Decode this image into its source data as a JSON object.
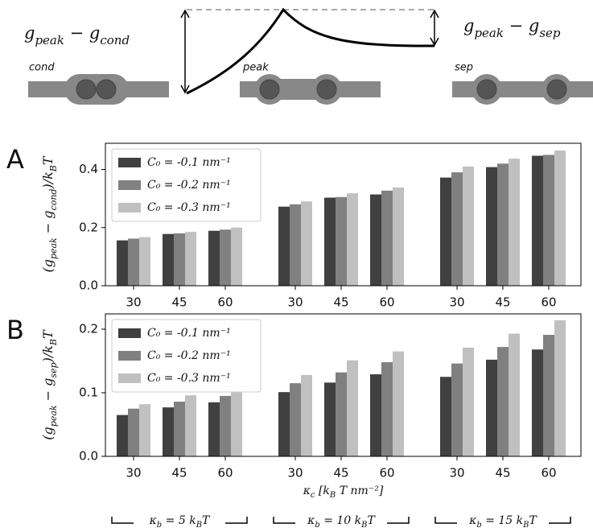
{
  "schematic": {
    "left_label": [
      "g",
      "peak",
      " − g",
      "cond"
    ],
    "right_label": [
      "g",
      "peak",
      " − g",
      "sep"
    ],
    "states": [
      "cond",
      "peak",
      "sep"
    ]
  },
  "chart_data": [
    {
      "type": "bar",
      "panel_label": "A",
      "ylabel": [
        "(g",
        "peak",
        " − g",
        "cond",
        ")/k",
        "B",
        "T"
      ],
      "categories": [
        "30",
        "45",
        "60",
        "30",
        "45",
        "60",
        "30",
        "45",
        "60"
      ],
      "series": [
        {
          "name": "C₀ = -0.1 nm⁻¹",
          "color": "#404040",
          "values": [
            0.156,
            0.178,
            0.189,
            0.272,
            0.303,
            0.314,
            0.372,
            0.408,
            0.447
          ]
        },
        {
          "name": "C₀ = -0.2 nm⁻¹",
          "color": "#808080",
          "values": [
            0.162,
            0.18,
            0.193,
            0.28,
            0.305,
            0.327,
            0.39,
            0.42,
            0.45
          ]
        },
        {
          "name": "C₀ = -0.3 nm⁻¹",
          "color": "#c0c0c0",
          "values": [
            0.167,
            0.185,
            0.2,
            0.29,
            0.318,
            0.338,
            0.41,
            0.437,
            0.465
          ]
        }
      ],
      "ylim": [
        0,
        0.49
      ],
      "yticks": [
        {
          "value": 0,
          "label": "0.0"
        },
        0.2,
        0.4
      ],
      "legend": "upper left"
    },
    {
      "type": "bar",
      "panel_label": "B",
      "ylabel": [
        "(g",
        "peak",
        " − g",
        "sep",
        ")/k",
        "B",
        "T"
      ],
      "xlabel": [
        "κ",
        "c",
        " [k",
        "B",
        " T nm⁻²]"
      ],
      "groups": [
        [
          "κ",
          "b",
          " = 5 k",
          "B",
          "T"
        ],
        [
          "κ",
          "b",
          " = 10 k",
          "B",
          "T"
        ],
        [
          "κ",
          "b",
          " = 15 k",
          "B",
          "T"
        ]
      ],
      "categories": [
        "30",
        "45",
        "60",
        "30",
        "45",
        "60",
        "30",
        "45",
        "60"
      ],
      "series": [
        {
          "name": "C₀ = -0.1 nm⁻¹",
          "color": "#404040",
          "values": [
            0.065,
            0.077,
            0.085,
            0.101,
            0.116,
            0.129,
            0.125,
            0.152,
            0.168
          ]
        },
        {
          "name": "C₀ = -0.2 nm⁻¹",
          "color": "#808080",
          "values": [
            0.075,
            0.086,
            0.095,
            0.115,
            0.132,
            0.148,
            0.146,
            0.172,
            0.191
          ]
        },
        {
          "name": "C₀ = -0.3 nm⁻¹",
          "color": "#c0c0c0",
          "values": [
            0.082,
            0.096,
            0.107,
            0.128,
            0.151,
            0.165,
            0.171,
            0.193,
            0.214
          ]
        }
      ],
      "ylim": [
        0,
        0.224
      ],
      "yticks": [
        {
          "value": 0,
          "label": "0.0"
        },
        0.1,
        0.2
      ],
      "legend": "upper left"
    }
  ]
}
